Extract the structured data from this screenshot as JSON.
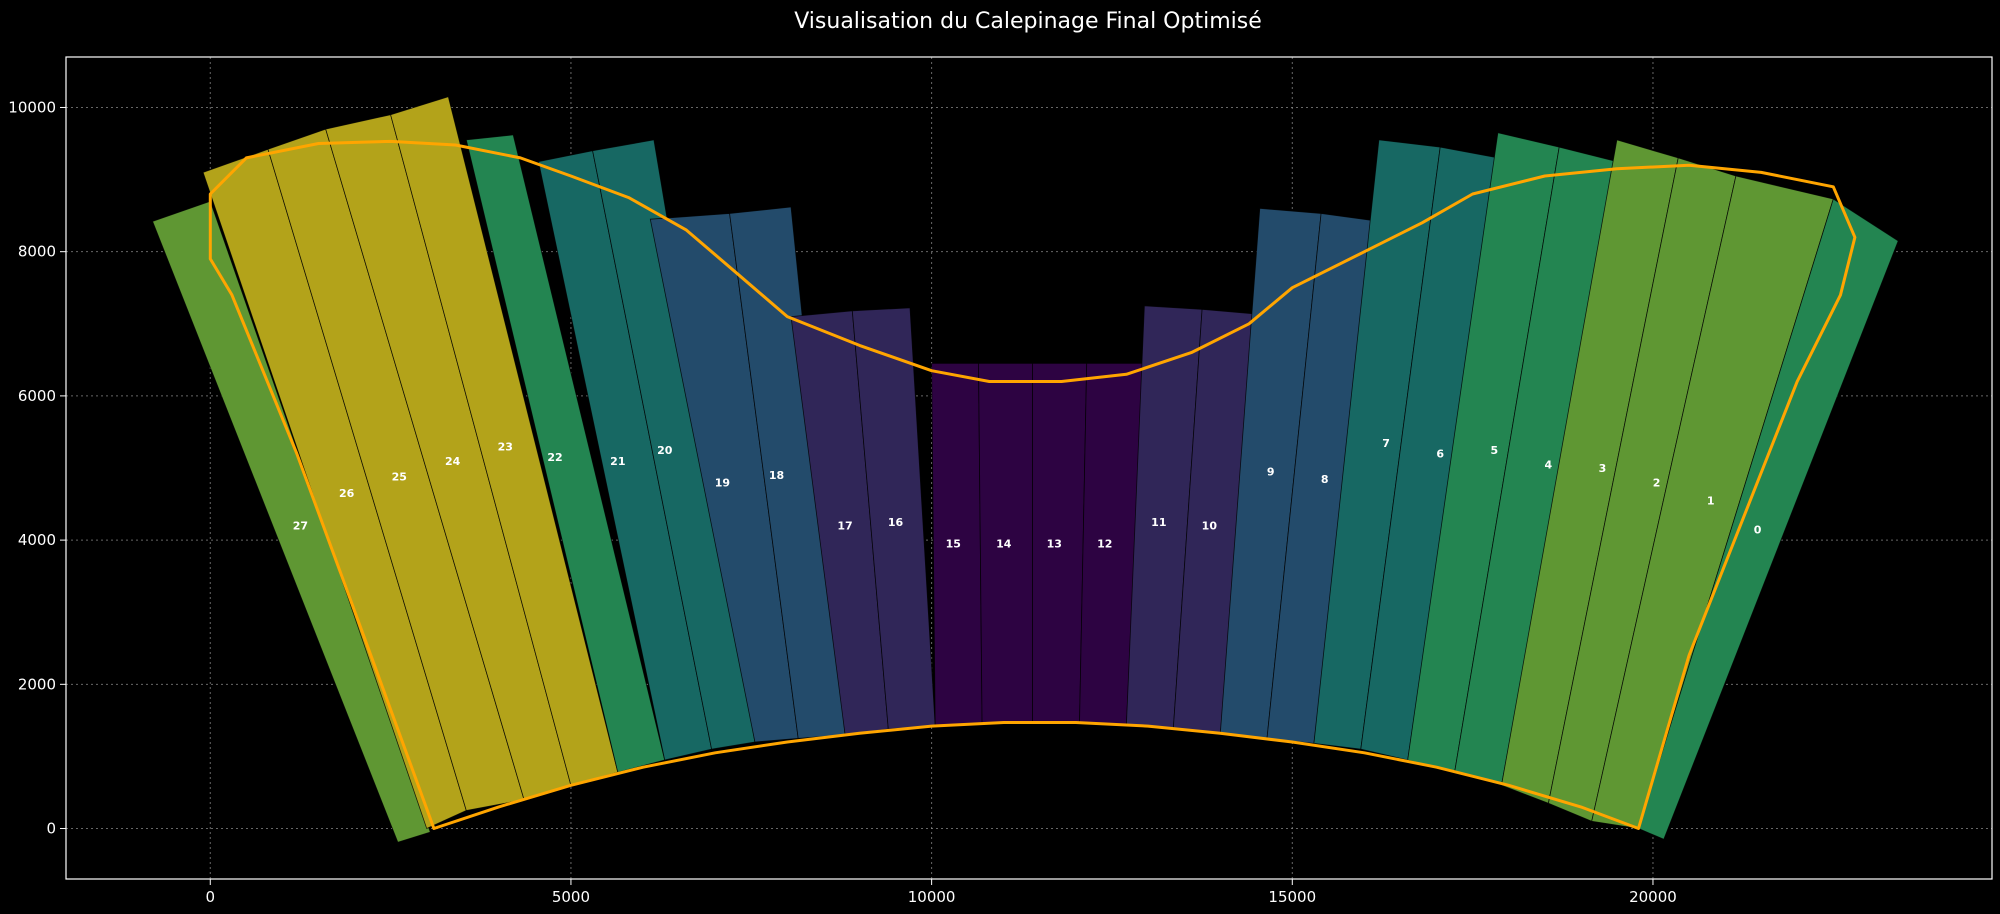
{
  "chart_data": {
    "type": "polygon",
    "title": "Visualisation du Calepinage Final Optimisé",
    "xlabel": "",
    "ylabel": "",
    "xlim": [
      -2000,
      24700
    ],
    "ylim": [
      -700,
      10700
    ],
    "x_ticks": [
      0,
      5000,
      10000,
      15000,
      20000
    ],
    "y_ticks": [
      0,
      2000,
      4000,
      6000,
      8000,
      10000
    ],
    "grid": true,
    "background": "#000000",
    "outline_color": "#ffa500",
    "panels": [
      {
        "label": "27",
        "color": "#5f9733",
        "label_xy": [
          1250,
          4200
        ],
        "corners": [
          [
            -800,
            8420
          ],
          [
            0,
            8700
          ],
          [
            3050,
            -50
          ],
          [
            2600,
            -190
          ]
        ]
      },
      {
        "label": "26",
        "color": "#b3a31a",
        "label_xy": [
          1890,
          4650
        ],
        "corners": [
          [
            -100,
            9100
          ],
          [
            800,
            9420
          ],
          [
            3550,
            250
          ],
          [
            3000,
            0
          ]
        ]
      },
      {
        "label": "25",
        "color": "#b3a31a",
        "label_xy": [
          2620,
          4880
        ],
        "corners": [
          [
            800,
            9420
          ],
          [
            1600,
            9700
          ],
          [
            4350,
            400
          ],
          [
            3550,
            250
          ]
        ]
      },
      {
        "label": "24",
        "color": "#b3a31a",
        "label_xy": [
          3360,
          5100
        ],
        "corners": [
          [
            1600,
            9700
          ],
          [
            2500,
            9900
          ],
          [
            5000,
            600
          ],
          [
            4350,
            400
          ]
        ]
      },
      {
        "label": "23",
        "color": "#b3a31a",
        "label_xy": [
          4090,
          5300
        ],
        "corners": [
          [
            2500,
            9900
          ],
          [
            3300,
            10150
          ],
          [
            5650,
            780
          ],
          [
            5000,
            600
          ]
        ]
      },
      {
        "label": "22",
        "color": "#238551",
        "label_xy": [
          4780,
          5150
        ],
        "corners": [
          [
            3550,
            9550
          ],
          [
            4200,
            9620
          ],
          [
            6300,
            950
          ],
          [
            5650,
            780
          ]
        ]
      },
      {
        "label": "21",
        "color": "#176863",
        "label_xy": [
          5650,
          5100
        ],
        "corners": [
          [
            4550,
            9250
          ],
          [
            5300,
            9400
          ],
          [
            6950,
            1100
          ],
          [
            6300,
            950
          ]
        ]
      },
      {
        "label": "20",
        "color": "#176863",
        "label_xy": [
          6300,
          5250
        ],
        "corners": [
          [
            5300,
            9400
          ],
          [
            6150,
            9550
          ],
          [
            7550,
            1200
          ],
          [
            6950,
            1100
          ]
        ]
      },
      {
        "label": "19",
        "color": "#234b6b",
        "label_xy": [
          7100,
          4800
        ],
        "corners": [
          [
            6100,
            8450
          ],
          [
            7200,
            8530
          ],
          [
            8150,
            1250
          ],
          [
            7550,
            1200
          ]
        ]
      },
      {
        "label": "18",
        "color": "#234b6b",
        "label_xy": [
          7850,
          4900
        ],
        "corners": [
          [
            7200,
            8530
          ],
          [
            8050,
            8620
          ],
          [
            8800,
            1300
          ],
          [
            8150,
            1250
          ]
        ]
      },
      {
        "label": "17",
        "color": "#302658",
        "label_xy": [
          8800,
          4200
        ],
        "corners": [
          [
            8050,
            7100
          ],
          [
            8900,
            7180
          ],
          [
            9400,
            1380
          ],
          [
            8800,
            1300
          ]
        ]
      },
      {
        "label": "16",
        "color": "#302658",
        "label_xy": [
          9500,
          4250
        ],
        "corners": [
          [
            8900,
            7180
          ],
          [
            9700,
            7220
          ],
          [
            10050,
            1420
          ],
          [
            9400,
            1380
          ]
        ]
      },
      {
        "label": "15",
        "color": "#2d0342",
        "label_xy": [
          10300,
          3950
        ],
        "corners": [
          [
            10000,
            6450
          ],
          [
            10650,
            6450
          ],
          [
            10700,
            1440
          ],
          [
            10050,
            1420
          ]
        ]
      },
      {
        "label": "14",
        "color": "#2d0342",
        "label_xy": [
          11000,
          3950
        ],
        "corners": [
          [
            10650,
            6450
          ],
          [
            11400,
            6450
          ],
          [
            11400,
            1460
          ],
          [
            10700,
            1440
          ]
        ]
      },
      {
        "label": "13",
        "color": "#2d0342",
        "label_xy": [
          11700,
          3950
        ],
        "corners": [
          [
            11400,
            6450
          ],
          [
            12150,
            6450
          ],
          [
            12050,
            1460
          ],
          [
            11400,
            1460
          ]
        ]
      },
      {
        "label": "12",
        "color": "#2d0342",
        "label_xy": [
          12400,
          3950
        ],
        "corners": [
          [
            12150,
            6450
          ],
          [
            12950,
            6450
          ],
          [
            12700,
            1440
          ],
          [
            12050,
            1460
          ]
        ]
      },
      {
        "label": "11",
        "color": "#302658",
        "label_xy": [
          13150,
          4250
        ],
        "corners": [
          [
            12950,
            7250
          ],
          [
            13750,
            7200
          ],
          [
            13350,
            1380
          ],
          [
            12700,
            1440
          ]
        ]
      },
      {
        "label": "10",
        "color": "#302658",
        "label_xy": [
          13850,
          4200
        ],
        "corners": [
          [
            13750,
            7200
          ],
          [
            14550,
            7130
          ],
          [
            14000,
            1300
          ],
          [
            13350,
            1380
          ]
        ]
      },
      {
        "label": "9",
        "color": "#234b6b",
        "label_xy": [
          14700,
          4950
        ],
        "corners": [
          [
            14550,
            8600
          ],
          [
            15400,
            8530
          ],
          [
            14650,
            1250
          ],
          [
            14000,
            1300
          ]
        ]
      },
      {
        "label": "8",
        "color": "#234b6b",
        "label_xy": [
          15450,
          4850
        ],
        "corners": [
          [
            15400,
            8530
          ],
          [
            16200,
            8420
          ],
          [
            15300,
            1180
          ],
          [
            14650,
            1250
          ]
        ]
      },
      {
        "label": "7",
        "color": "#176863",
        "label_xy": [
          16300,
          5350
        ],
        "corners": [
          [
            16200,
            9550
          ],
          [
            17050,
            9450
          ],
          [
            15950,
            1100
          ],
          [
            15300,
            1180
          ]
        ]
      },
      {
        "label": "6",
        "color": "#176863",
        "label_xy": [
          17050,
          5200
        ],
        "corners": [
          [
            17050,
            9450
          ],
          [
            17850,
            9300
          ],
          [
            16600,
            950
          ],
          [
            15950,
            1100
          ]
        ]
      },
      {
        "label": "5",
        "color": "#238551",
        "label_xy": [
          17800,
          5250
        ],
        "corners": [
          [
            17850,
            9650
          ],
          [
            18700,
            9450
          ],
          [
            17250,
            780
          ],
          [
            16600,
            950
          ]
        ]
      },
      {
        "label": "4",
        "color": "#238551",
        "label_xy": [
          18550,
          5050
        ],
        "corners": [
          [
            18700,
            9450
          ],
          [
            19500,
            9250
          ],
          [
            17900,
            600
          ],
          [
            17250,
            780
          ]
        ]
      },
      {
        "label": "3",
        "color": "#5f9733",
        "label_xy": [
          19300,
          5000
        ],
        "corners": [
          [
            19500,
            9550
          ],
          [
            20350,
            9300
          ],
          [
            18550,
            350
          ],
          [
            17900,
            600
          ]
        ]
      },
      {
        "label": "2",
        "color": "#5f9733",
        "label_xy": [
          20050,
          4800
        ],
        "corners": [
          [
            20350,
            9300
          ],
          [
            21150,
            9050
          ],
          [
            19150,
            100
          ],
          [
            18550,
            350
          ]
        ]
      },
      {
        "label": "1",
        "color": "#5f9733",
        "label_xy": [
          20800,
          4550
        ],
        "corners": [
          [
            21150,
            9050
          ],
          [
            22500,
            8730
          ],
          [
            19800,
            0
          ],
          [
            19150,
            100
          ]
        ]
      },
      {
        "label": "0",
        "color": "#238551",
        "label_xy": [
          21450,
          4150
        ],
        "corners": [
          [
            22500,
            8730
          ],
          [
            23400,
            8150
          ],
          [
            20150,
            -150
          ],
          [
            19800,
            0
          ]
        ]
      }
    ],
    "outline": [
      [
        0,
        7900
      ],
      [
        300,
        7400
      ],
      [
        1200,
        5200
      ],
      [
        2300,
        2200
      ],
      [
        3100,
        0
      ],
      [
        4000,
        300
      ],
      [
        5000,
        600
      ],
      [
        6000,
        850
      ],
      [
        7000,
        1050
      ],
      [
        8000,
        1200
      ],
      [
        9000,
        1320
      ],
      [
        10000,
        1420
      ],
      [
        11000,
        1470
      ],
      [
        12000,
        1470
      ],
      [
        13000,
        1420
      ],
      [
        14000,
        1320
      ],
      [
        15000,
        1200
      ],
      [
        16000,
        1050
      ],
      [
        17000,
        850
      ],
      [
        18000,
        600
      ],
      [
        19000,
        300
      ],
      [
        19800,
        0
      ],
      [
        20500,
        2400
      ],
      [
        22000,
        6200
      ],
      [
        22600,
        7400
      ],
      [
        22800,
        8200
      ],
      [
        22500,
        8900
      ],
      [
        21500,
        9100
      ],
      [
        20500,
        9200
      ],
      [
        19500,
        9150
      ],
      [
        18500,
        9050
      ],
      [
        17500,
        8800
      ],
      [
        16800,
        8400
      ],
      [
        16000,
        8000
      ],
      [
        15000,
        7500
      ],
      [
        14400,
        7000
      ],
      [
        13600,
        6600
      ],
      [
        12700,
        6300
      ],
      [
        11800,
        6200
      ],
      [
        10800,
        6200
      ],
      [
        10000,
        6350
      ],
      [
        9000,
        6700
      ],
      [
        8000,
        7100
      ],
      [
        7300,
        7700
      ],
      [
        6600,
        8300
      ],
      [
        5800,
        8750
      ],
      [
        5000,
        9050
      ],
      [
        4300,
        9300
      ],
      [
        3400,
        9480
      ],
      [
        2500,
        9530
      ],
      [
        1500,
        9500
      ],
      [
        500,
        9300
      ],
      [
        0,
        8800
      ],
      [
        0,
        7900
      ]
    ]
  }
}
